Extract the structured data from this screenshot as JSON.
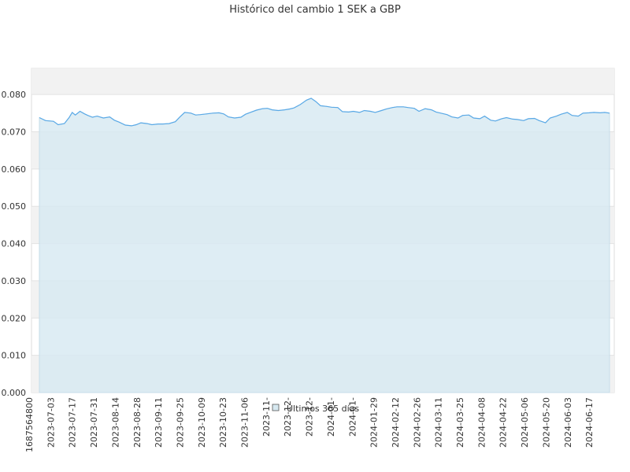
{
  "chart_data": {
    "type": "area",
    "title": "Histórico del cambio 1 SEK a GBP",
    "xlabel": "",
    "ylabel": "",
    "ylim": [
      0,
      0.087
    ],
    "y_ticks": [
      "0.000",
      "0.010",
      "0.020",
      "0.030",
      "0.040",
      "0.050",
      "0.060",
      "0.070",
      "0.080"
    ],
    "grid": true,
    "legend": "bottom-center",
    "x_tick_labels": [
      "1687564800",
      "2023-07-03",
      "2023-07-17",
      "2023-07-31",
      "2023-08-14",
      "2023-08-28",
      "2023-09-11",
      "2023-09-25",
      "2023-10-09",
      "2023-10-23",
      "2023-11-06",
      "2023-11-",
      "2023-12-",
      "2023-12-",
      "2024-01-",
      "2024-01-",
      "2024-01-29",
      "2024-02-12",
      "2024-02-26",
      "2024-03-11",
      "2024-03-25",
      "2024-04-08",
      "2024-04-22",
      "2024-05-06",
      "2024-05-20",
      "2024-06-03",
      "2024-06-17"
    ],
    "series": [
      {
        "name": "Últimos 365 días",
        "color": "#5aa9e6",
        "fill": "#d7e9f1",
        "x": [
          "2023-06-24",
          "2023-06-28",
          "2023-07-03",
          "2023-07-06",
          "2023-07-10",
          "2023-07-13",
          "2023-07-15",
          "2023-07-17",
          "2023-07-20",
          "2023-07-23",
          "2023-07-25",
          "2023-07-28",
          "2023-07-31",
          "2023-08-04",
          "2023-08-08",
          "2023-08-11",
          "2023-08-14",
          "2023-08-18",
          "2023-08-22",
          "2023-08-25",
          "2023-08-28",
          "2023-09-01",
          "2023-09-04",
          "2023-09-08",
          "2023-09-11",
          "2023-09-15",
          "2023-09-19",
          "2023-09-22",
          "2023-09-25",
          "2023-09-29",
          "2023-10-02",
          "2023-10-05",
          "2023-10-09",
          "2023-10-13",
          "2023-10-17",
          "2023-10-20",
          "2023-10-23",
          "2023-10-27",
          "2023-10-31",
          "2023-11-03",
          "2023-11-06",
          "2023-11-10",
          "2023-11-14",
          "2023-11-17",
          "2023-11-20",
          "2023-11-24",
          "2023-11-28",
          "2023-12-01",
          "2023-12-04",
          "2023-12-08",
          "2023-12-12",
          "2023-12-15",
          "2023-12-18",
          "2023-12-21",
          "2023-12-25",
          "2023-12-28",
          "2024-01-01",
          "2024-01-04",
          "2024-01-08",
          "2024-01-11",
          "2024-01-15",
          "2024-01-18",
          "2024-01-22",
          "2024-01-25",
          "2024-01-29",
          "2024-02-01",
          "2024-02-05",
          "2024-02-08",
          "2024-02-12",
          "2024-02-15",
          "2024-02-19",
          "2024-02-22",
          "2024-02-26",
          "2024-03-01",
          "2024-03-04",
          "2024-03-07",
          "2024-03-11",
          "2024-03-14",
          "2024-03-18",
          "2024-03-21",
          "2024-03-25",
          "2024-03-28",
          "2024-04-01",
          "2024-04-04",
          "2024-04-08",
          "2024-04-11",
          "2024-04-15",
          "2024-04-18",
          "2024-04-22",
          "2024-04-25",
          "2024-04-29",
          "2024-05-02",
          "2024-05-06",
          "2024-05-09",
          "2024-05-13",
          "2024-05-16",
          "2024-05-20",
          "2024-05-23",
          "2024-05-27",
          "2024-05-30",
          "2024-06-03",
          "2024-06-06",
          "2024-06-10",
          "2024-06-13",
          "2024-06-17",
          "2024-06-20",
          "2024-06-23"
        ],
        "values": [
          0.0738,
          0.073,
          0.0728,
          0.0719,
          0.0722,
          0.0738,
          0.0752,
          0.0745,
          0.0755,
          0.0748,
          0.0744,
          0.0739,
          0.0742,
          0.0737,
          0.074,
          0.0731,
          0.0726,
          0.0718,
          0.0716,
          0.0719,
          0.0724,
          0.0722,
          0.0719,
          0.0721,
          0.0721,
          0.0722,
          0.0727,
          0.074,
          0.0752,
          0.075,
          0.0745,
          0.0746,
          0.0748,
          0.075,
          0.0751,
          0.0748,
          0.074,
          0.0737,
          0.0739,
          0.0747,
          0.0752,
          0.0758,
          0.0762,
          0.0763,
          0.0759,
          0.0757,
          0.0759,
          0.0761,
          0.0764,
          0.0773,
          0.0785,
          0.079,
          0.0781,
          0.077,
          0.0768,
          0.0766,
          0.0765,
          0.0754,
          0.0753,
          0.0755,
          0.0752,
          0.0757,
          0.0755,
          0.0752,
          0.0757,
          0.0761,
          0.0765,
          0.0767,
          0.0767,
          0.0765,
          0.0763,
          0.0755,
          0.0762,
          0.0759,
          0.0753,
          0.075,
          0.0746,
          0.074,
          0.0737,
          0.0744,
          0.0745,
          0.0737,
          0.0735,
          0.0742,
          0.0731,
          0.0729,
          0.0735,
          0.0738,
          0.0734,
          0.0733,
          0.073,
          0.0735,
          0.0736,
          0.073,
          0.0724,
          0.0737,
          0.0742,
          0.0747,
          0.0752,
          0.0744,
          0.0742,
          0.075,
          0.0751,
          0.0752,
          0.0751,
          0.0752,
          0.075
        ]
      }
    ]
  }
}
